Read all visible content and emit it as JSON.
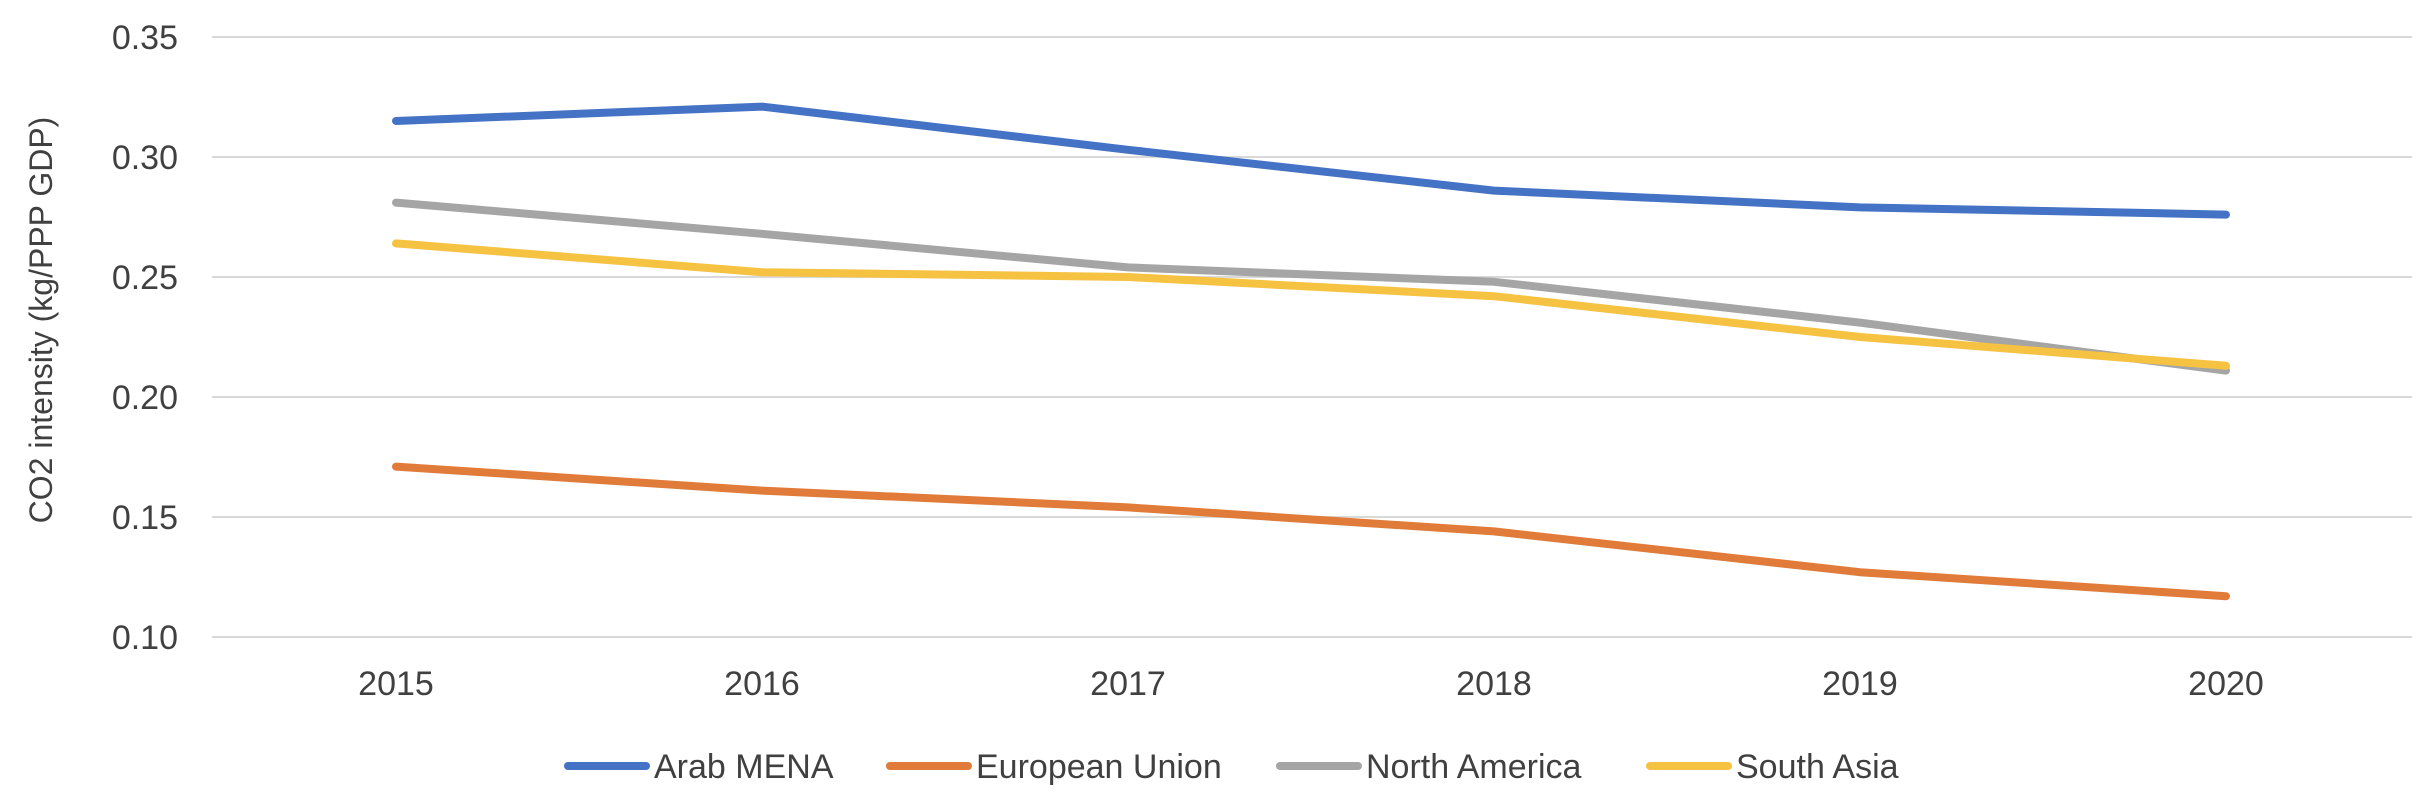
{
  "chart_data": {
    "type": "line",
    "title": "",
    "xlabel": "",
    "ylabel": "CO2 intensity (kg/PPP GDP)",
    "categories": [
      "2015",
      "2016",
      "2017",
      "2018",
      "2019",
      "2020"
    ],
    "ylim": [
      0.1,
      0.35
    ],
    "yticks": [
      "0.10",
      "0.15",
      "0.20",
      "0.25",
      "0.30",
      "0.35"
    ],
    "grid": true,
    "legend_position": "bottom",
    "series": [
      {
        "name": "Arab MENA",
        "color": "#4472c4",
        "values": [
          0.315,
          0.321,
          0.303,
          0.286,
          0.279,
          0.276
        ]
      },
      {
        "name": "European Union",
        "color": "#e07b39",
        "values": [
          0.171,
          0.161,
          0.154,
          0.144,
          0.127,
          0.117
        ]
      },
      {
        "name": "North America",
        "color": "#a5a5a5",
        "values": [
          0.281,
          0.268,
          0.254,
          0.248,
          0.231,
          0.211
        ]
      },
      {
        "name": "South Asia",
        "color": "#f5c242",
        "values": [
          0.264,
          0.252,
          0.25,
          0.242,
          0.225,
          0.213
        ]
      }
    ]
  }
}
